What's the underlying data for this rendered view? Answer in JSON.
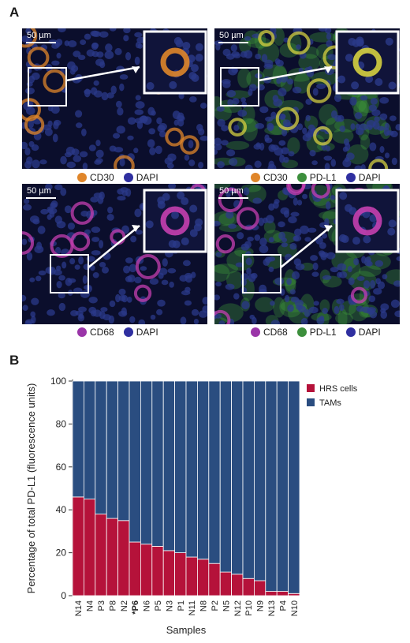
{
  "panel_a": {
    "letter": "A",
    "images": [
      {
        "scale_label": "50 µm",
        "cell_color": "#e0862a",
        "bg_color": "#2b3a8a",
        "green": false,
        "inset_top": true
      },
      {
        "scale_label": "50 µm",
        "cell_color": "#d6d040",
        "bg_color": "#2b3a8a",
        "green": true,
        "inset_top": true
      },
      {
        "scale_label": "50 µm",
        "cell_color": "#c53fb0",
        "bg_color": "#2b3a8a",
        "green": false,
        "inset_top": false
      },
      {
        "scale_label": "50 µm",
        "cell_color": "#c53fb0",
        "bg_color": "#2b3a8a",
        "green": true,
        "inset_top": false
      }
    ],
    "legends": [
      [
        {
          "label": "CD30",
          "color": "#e0862a"
        },
        {
          "label": "DAPI",
          "color": "#2f2fa0"
        }
      ],
      [
        {
          "label": "CD30",
          "color": "#e0862a"
        },
        {
          "label": "PD-L1",
          "color": "#3c8f3c"
        },
        {
          "label": "DAPI",
          "color": "#2f2fa0"
        }
      ],
      [
        {
          "label": "CD68",
          "color": "#9a35a8"
        },
        {
          "label": "DAPI",
          "color": "#2f2fa0"
        }
      ],
      [
        {
          "label": "CD68",
          "color": "#9a35a8"
        },
        {
          "label": "PD-L1",
          "color": "#3c8f3c"
        },
        {
          "label": "DAPI",
          "color": "#2f2fa0"
        }
      ]
    ]
  },
  "panel_b": {
    "letter": "B"
  },
  "chart_data": {
    "type": "bar",
    "stacked": true,
    "xlabel": "Samples",
    "ylabel": "Percentage of total PD-L1 (fluorescence units)",
    "ylim": [
      0,
      100
    ],
    "yticks": [
      0,
      20,
      40,
      60,
      80,
      100
    ],
    "categories": [
      "N14",
      "N4",
      "P3",
      "P8",
      "N2",
      "*P6",
      "N6",
      "P5",
      "N3",
      "P1",
      "N11",
      "N8",
      "P2",
      "N5",
      "N12",
      "P10",
      "N9",
      "N13",
      "P4",
      "N10"
    ],
    "series": [
      {
        "name": "HRS cells",
        "color": "#b5123a",
        "values": [
          46,
          45,
          38,
          36,
          35,
          25,
          24,
          23,
          21,
          20,
          18,
          17,
          15,
          11,
          10,
          8,
          7,
          2,
          2,
          1
        ]
      },
      {
        "name": "TAMs",
        "color": "#2a4d80",
        "values": [
          54,
          55,
          62,
          64,
          65,
          75,
          76,
          77,
          79,
          80,
          82,
          83,
          85,
          89,
          90,
          92,
          93,
          98,
          98,
          99
        ]
      }
    ],
    "legend_position": "top-right"
  }
}
